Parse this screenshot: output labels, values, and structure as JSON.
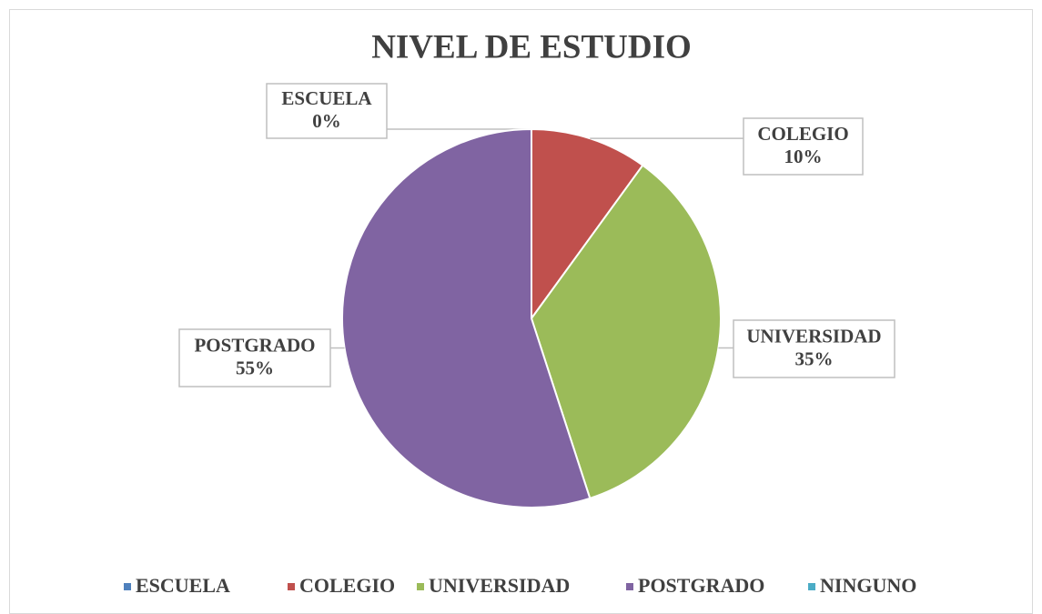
{
  "chart_data": {
    "type": "pie",
    "title": "NIVEL DE ESTUDIO",
    "categories": [
      "ESCUELA",
      "COLEGIO",
      "UNIVERSIDAD",
      "POSTGRADO",
      "NINGUNO"
    ],
    "values": [
      0,
      10,
      35,
      55,
      0
    ],
    "value_labels": [
      "0%",
      "10%",
      "35%",
      "55%",
      null
    ],
    "colors": [
      "#4f81bd",
      "#c0504d",
      "#9bbb59",
      "#8064a2",
      "#4bacc6"
    ],
    "legend": "bottom"
  }
}
